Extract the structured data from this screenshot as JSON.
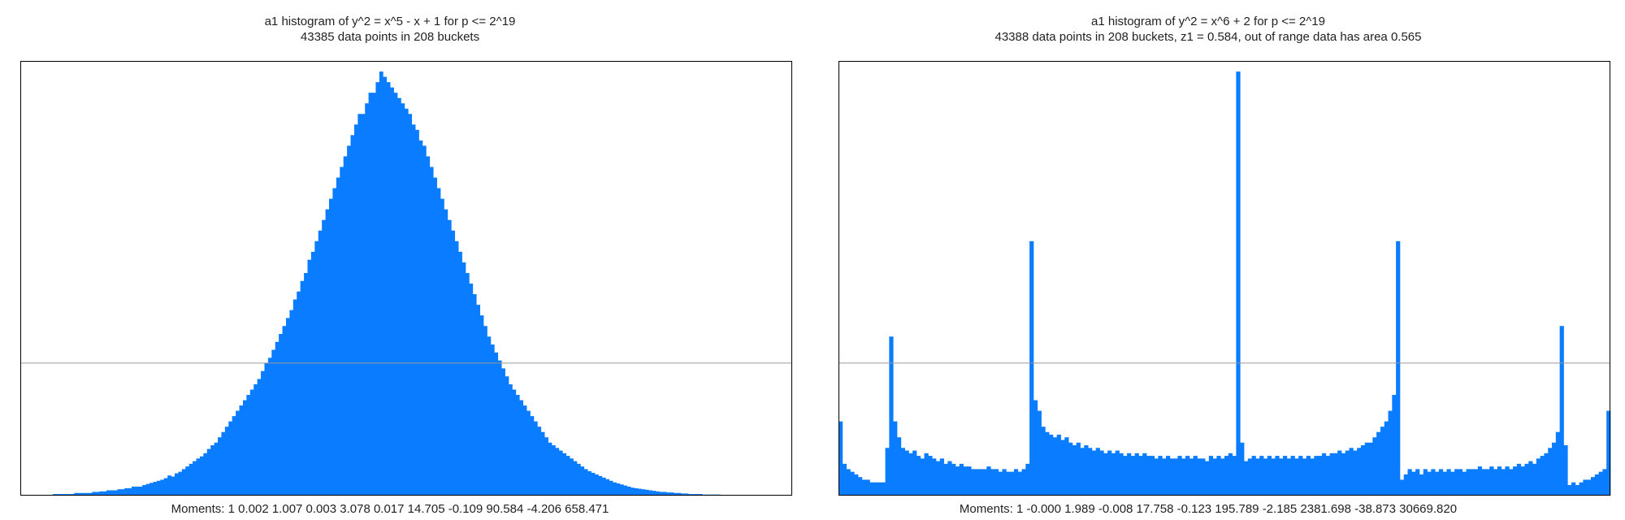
{
  "colors": {
    "bar": "#0a7cff",
    "frame": "#000000",
    "refline": "#999999"
  },
  "chart_data": [
    {
      "type": "bar",
      "title": "a1 histogram of y^2 = x^5 - x + 1 for p <= 2^19",
      "subtitle": "43385 data points in 208 buckets",
      "moments": "Moments: 1   0.002   1.007   0.003   3.078   0.017   14.705   -0.109   90.584   -4.206   658.471",
      "bucket_count": 208,
      "reference_level": 0.25,
      "ylim": [
        0,
        0.82
      ],
      "grid": false,
      "values": [
        0,
        0,
        0,
        0,
        0,
        0,
        0,
        0,
        0,
        0.003,
        0.003,
        0.003,
        0.003,
        0.003,
        0.003,
        0.005,
        0.005,
        0.005,
        0.005,
        0.005,
        0.007,
        0.007,
        0.008,
        0.008,
        0.01,
        0.01,
        0.01,
        0.012,
        0.012,
        0.014,
        0.014,
        0.017,
        0.017,
        0.017,
        0.02,
        0.022,
        0.024,
        0.026,
        0.028,
        0.03,
        0.033,
        0.038,
        0.036,
        0.042,
        0.045,
        0.05,
        0.055,
        0.06,
        0.065,
        0.07,
        0.074,
        0.08,
        0.088,
        0.095,
        0.1,
        0.11,
        0.12,
        0.13,
        0.14,
        0.15,
        0.16,
        0.17,
        0.18,
        0.19,
        0.2,
        0.21,
        0.22,
        0.235,
        0.25,
        0.26,
        0.275,
        0.29,
        0.305,
        0.32,
        0.335,
        0.35,
        0.37,
        0.385,
        0.405,
        0.42,
        0.445,
        0.46,
        0.48,
        0.5,
        0.52,
        0.54,
        0.56,
        0.58,
        0.6,
        0.62,
        0.64,
        0.66,
        0.68,
        0.7,
        0.72,
        0.72,
        0.74,
        0.76,
        0.76,
        0.78,
        0.8,
        0.79,
        0.78,
        0.77,
        0.76,
        0.75,
        0.74,
        0.73,
        0.72,
        0.7,
        0.69,
        0.67,
        0.66,
        0.64,
        0.62,
        0.6,
        0.58,
        0.56,
        0.54,
        0.52,
        0.5,
        0.48,
        0.46,
        0.44,
        0.42,
        0.4,
        0.38,
        0.36,
        0.34,
        0.32,
        0.3,
        0.285,
        0.27,
        0.255,
        0.24,
        0.225,
        0.21,
        0.2,
        0.19,
        0.18,
        0.17,
        0.16,
        0.15,
        0.14,
        0.13,
        0.12,
        0.11,
        0.1,
        0.095,
        0.09,
        0.085,
        0.08,
        0.075,
        0.07,
        0.065,
        0.06,
        0.055,
        0.05,
        0.046,
        0.043,
        0.04,
        0.037,
        0.034,
        0.031,
        0.028,
        0.025,
        0.023,
        0.021,
        0.019,
        0.017,
        0.015,
        0.014,
        0.013,
        0.012,
        0.011,
        0.01,
        0.009,
        0.008,
        0.007,
        0.007,
        0.006,
        0.006,
        0.005,
        0.005,
        0.004,
        0.004,
        0.003,
        0.003,
        0.003,
        0.003,
        0.002,
        0.002,
        0.002,
        0.002,
        0.002,
        0.001,
        0.001,
        0.001,
        0.001,
        0,
        0,
        0,
        0,
        0,
        0,
        0,
        0,
        0,
        0,
        0,
        0,
        0,
        0,
        0,
        0
      ]
    },
    {
      "type": "bar",
      "title": "a1 histogram of y^2 = x^6 + 2 for p <= 2^19",
      "subtitle": "43388 data points in 208 buckets, z1 = 0.584, out of range data has area 0.565",
      "moments": "Moments: 1   -0.000   1.989   -0.008   17.758   -0.123   195.789   -2.185   2381.698   -38.873   30669.820",
      "bucket_count": 208,
      "reference_level": 0.25,
      "ylim": [
        0,
        0.82
      ],
      "grid": false,
      "values": [
        0.14,
        0.06,
        0.05,
        0.045,
        0.04,
        0.035,
        0.03,
        0.03,
        0.025,
        0.025,
        0.025,
        0.025,
        0.09,
        0.3,
        0.14,
        0.11,
        0.09,
        0.085,
        0.08,
        0.085,
        0.075,
        0.07,
        0.08,
        0.075,
        0.07,
        0.065,
        0.07,
        0.06,
        0.065,
        0.06,
        0.055,
        0.06,
        0.055,
        0.055,
        0.05,
        0.05,
        0.05,
        0.05,
        0.055,
        0.05,
        0.05,
        0.045,
        0.05,
        0.045,
        0.045,
        0.05,
        0.045,
        0.05,
        0.06,
        0.48,
        0.18,
        0.16,
        0.13,
        0.12,
        0.115,
        0.11,
        0.115,
        0.105,
        0.11,
        0.1,
        0.095,
        0.1,
        0.09,
        0.095,
        0.09,
        0.085,
        0.09,
        0.085,
        0.08,
        0.085,
        0.08,
        0.085,
        0.08,
        0.075,
        0.08,
        0.075,
        0.08,
        0.075,
        0.08,
        0.075,
        0.075,
        0.07,
        0.075,
        0.07,
        0.075,
        0.07,
        0.07,
        0.075,
        0.07,
        0.075,
        0.07,
        0.075,
        0.07,
        0.07,
        0.065,
        0.075,
        0.07,
        0.075,
        0.07,
        0.075,
        0.08,
        0.075,
        0.8,
        0.1,
        0.065,
        0.07,
        0.075,
        0.07,
        0.075,
        0.07,
        0.075,
        0.07,
        0.075,
        0.07,
        0.075,
        0.07,
        0.075,
        0.07,
        0.075,
        0.07,
        0.075,
        0.07,
        0.075,
        0.075,
        0.08,
        0.075,
        0.08,
        0.08,
        0.085,
        0.08,
        0.085,
        0.09,
        0.085,
        0.09,
        0.095,
        0.1,
        0.1,
        0.11,
        0.12,
        0.13,
        0.14,
        0.16,
        0.19,
        0.48,
        0.03,
        0.04,
        0.05,
        0.045,
        0.05,
        0.04,
        0.05,
        0.045,
        0.05,
        0.045,
        0.05,
        0.045,
        0.05,
        0.045,
        0.05,
        0.05,
        0.045,
        0.05,
        0.05,
        0.05,
        0.055,
        0.05,
        0.05,
        0.055,
        0.05,
        0.055,
        0.05,
        0.055,
        0.05,
        0.055,
        0.06,
        0.055,
        0.06,
        0.065,
        0.06,
        0.07,
        0.075,
        0.08,
        0.09,
        0.1,
        0.12,
        0.32,
        0.095,
        0.02,
        0.025,
        0.02,
        0.025,
        0.03,
        0.03,
        0.035,
        0.04,
        0.045,
        0.05,
        0.16
      ]
    }
  ]
}
